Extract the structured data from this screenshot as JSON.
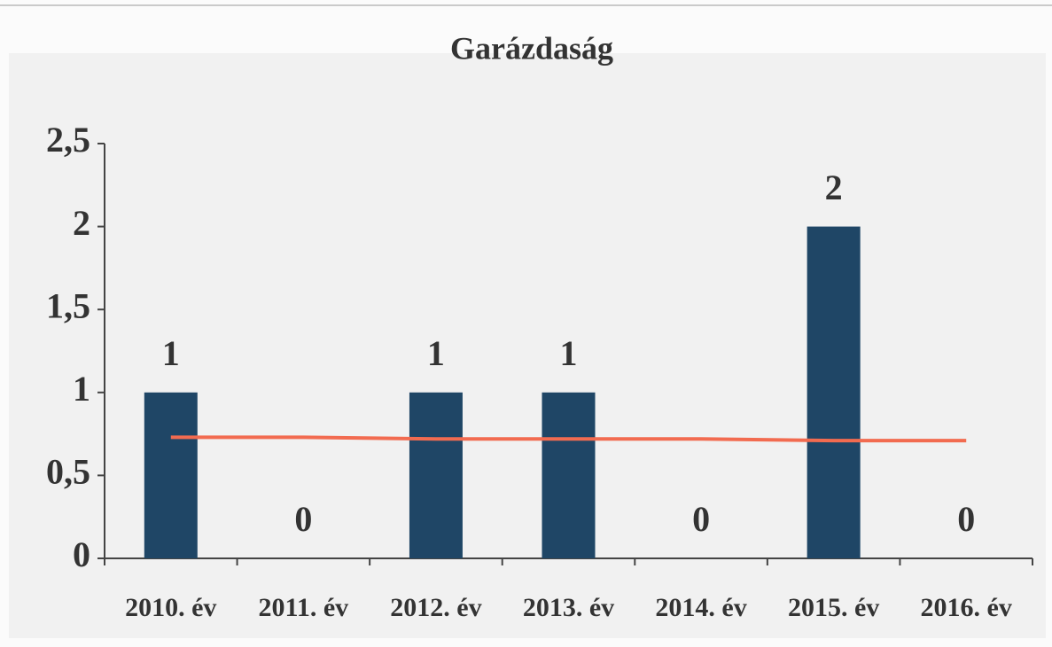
{
  "chart_data": {
    "type": "bar",
    "title": "Garázdaság",
    "categories": [
      "2010. év",
      "2011. év",
      "2012. év",
      "2013. év",
      "2014. év",
      "2015. év",
      "2016. év"
    ],
    "values": [
      1,
      0,
      1,
      1,
      0,
      2,
      0
    ],
    "color": "#1f4666",
    "ylim": [
      0,
      2.5
    ],
    "yticks": [
      0,
      {
        "value": 0.5,
        "label": "0,5"
      },
      1,
      {
        "value": 1.5,
        "label": "1,5"
      },
      2,
      {
        "value": 2.5,
        "label": "2,5"
      }
    ],
    "line": {
      "color": "#f26b50",
      "values": [
        0.73,
        0.73,
        0.72,
        0.72,
        0.72,
        0.71,
        0.71
      ]
    }
  }
}
